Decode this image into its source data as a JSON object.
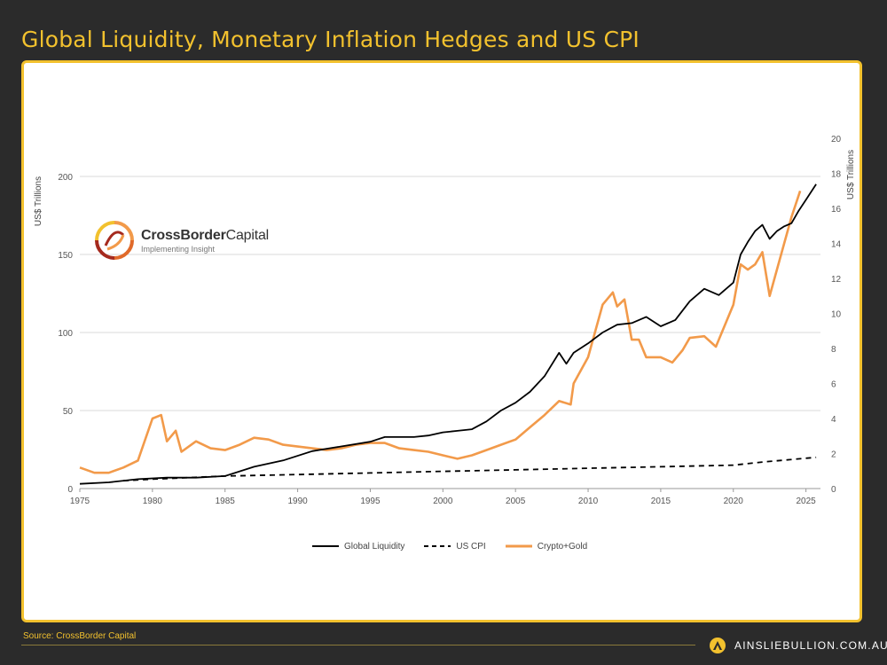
{
  "title": "Global Liquidity, Monetary Inflation Hedges and US CPI",
  "source": "Source: CrossBorder Capital",
  "brand": {
    "text": "AINSLIEBULLION.COM.AU",
    "icon": "ainslie-a-logo-icon",
    "color": "#f2c12e"
  },
  "logo": {
    "name_bold": "CrossBorder",
    "name_rest": "Capital",
    "tagline": "Implementing Insight",
    "icon": "crossborder-swirl-logo-icon"
  },
  "colors": {
    "accent": "#f2c12e",
    "liquidity": "#000000",
    "cpi": "#000000",
    "crypto_gold": "#f29a4a",
    "background": "#2b2b2b"
  },
  "chart_data": {
    "type": "line",
    "title": "Global Liquidity, Monetary Inflation Hedges and US CPI",
    "xlabel": "",
    "ylabel_left": "US$ Trillions",
    "ylabel_right": "US$ Trillions",
    "xlim": [
      1975,
      2026
    ],
    "ylim_left": [
      0,
      200
    ],
    "ylim_right": [
      0,
      20
    ],
    "x_ticks": [
      "1975",
      "1980",
      "1985",
      "1990",
      "1995",
      "2000",
      "2005",
      "2010",
      "2015",
      "2020",
      "2025"
    ],
    "y_ticks_left": [
      "0",
      "50",
      "100",
      "150",
      "200"
    ],
    "y_ticks_right": [
      "0",
      "2",
      "4",
      "6",
      "8",
      "10",
      "12",
      "14",
      "16",
      "18",
      "20"
    ],
    "grid": "horizontal",
    "legend_position": "bottom",
    "series": [
      {
        "name": "Global Liquidity",
        "axis": "left",
        "style": "solid",
        "color": "#000000",
        "x": [
          1975,
          1977,
          1979,
          1981,
          1983,
          1985,
          1987,
          1989,
          1991,
          1993,
          1995,
          1996,
          1998,
          1999,
          2000,
          2001,
          2002,
          2003,
          2004,
          2005,
          2006,
          2007,
          2008,
          2008.5,
          2009,
          2010,
          2011,
          2012,
          2013,
          2014,
          2015,
          2016,
          2017,
          2018,
          2019,
          2020,
          2020.5,
          2021,
          2021.5,
          2022,
          2022.5,
          2023,
          2023.5,
          2024,
          2024.5,
          2025,
          2025.7
        ],
        "y": [
          3,
          4,
          6,
          7,
          7,
          8,
          14,
          18,
          24,
          27,
          30,
          33,
          33,
          34,
          36,
          37,
          38,
          43,
          50,
          55,
          62,
          72,
          87,
          80,
          87,
          93,
          100,
          105,
          106,
          110,
          104,
          108,
          120,
          128,
          124,
          132,
          150,
          158,
          165,
          169,
          160,
          165,
          168,
          170,
          178,
          185,
          195
        ]
      },
      {
        "name": "US CPI",
        "axis": "left",
        "style": "dashed",
        "color": "#000000",
        "x": [
          1978,
          1980,
          1985,
          1990,
          1995,
          2000,
          2005,
          2010,
          2015,
          2020,
          2022,
          2025.7
        ],
        "y": [
          5,
          6,
          8,
          9,
          10,
          11,
          12,
          13,
          14,
          15,
          17,
          20
        ]
      },
      {
        "name": "Crypto+Gold",
        "axis": "right",
        "style": "solid",
        "color": "#f29a4a",
        "x": [
          1975,
          1976,
          1977,
          1978,
          1979,
          1980,
          1980.6,
          1981,
          1981.6,
          1982,
          1983,
          1984,
          1985,
          1986,
          1987,
          1988,
          1989,
          1990,
          1991,
          1992,
          1993,
          1994,
          1995,
          1996,
          1997,
          1998,
          1999,
          2000,
          2001,
          2002,
          2003,
          2004,
          2005,
          2006,
          2007,
          2008,
          2008.8,
          2009,
          2010,
          2011,
          2011.7,
          2012,
          2012.5,
          2013,
          2013.5,
          2014,
          2015,
          2015.8,
          2016.5,
          2017,
          2018,
          2018.8,
          2019.5,
          2020,
          2020.5,
          2021,
          2021.5,
          2022,
          2022.5,
          2023,
          2023.5,
          2024,
          2024.6
        ],
        "y": [
          1.2,
          0.9,
          0.9,
          1.2,
          1.6,
          4.0,
          4.2,
          2.7,
          3.3,
          2.1,
          2.7,
          2.3,
          2.2,
          2.5,
          2.9,
          2.8,
          2.5,
          2.4,
          2.3,
          2.2,
          2.3,
          2.5,
          2.6,
          2.6,
          2.3,
          2.2,
          2.1,
          1.9,
          1.7,
          1.9,
          2.2,
          2.5,
          2.8,
          3.5,
          4.2,
          5.0,
          4.8,
          6.0,
          7.5,
          10.5,
          11.2,
          10.4,
          10.8,
          8.5,
          8.5,
          7.5,
          7.5,
          7.2,
          7.9,
          8.6,
          8.7,
          8.1,
          9.5,
          10.5,
          12.8,
          12.5,
          12.8,
          13.5,
          11.0,
          12.5,
          14.0,
          15.5,
          17.0
        ]
      }
    ]
  }
}
